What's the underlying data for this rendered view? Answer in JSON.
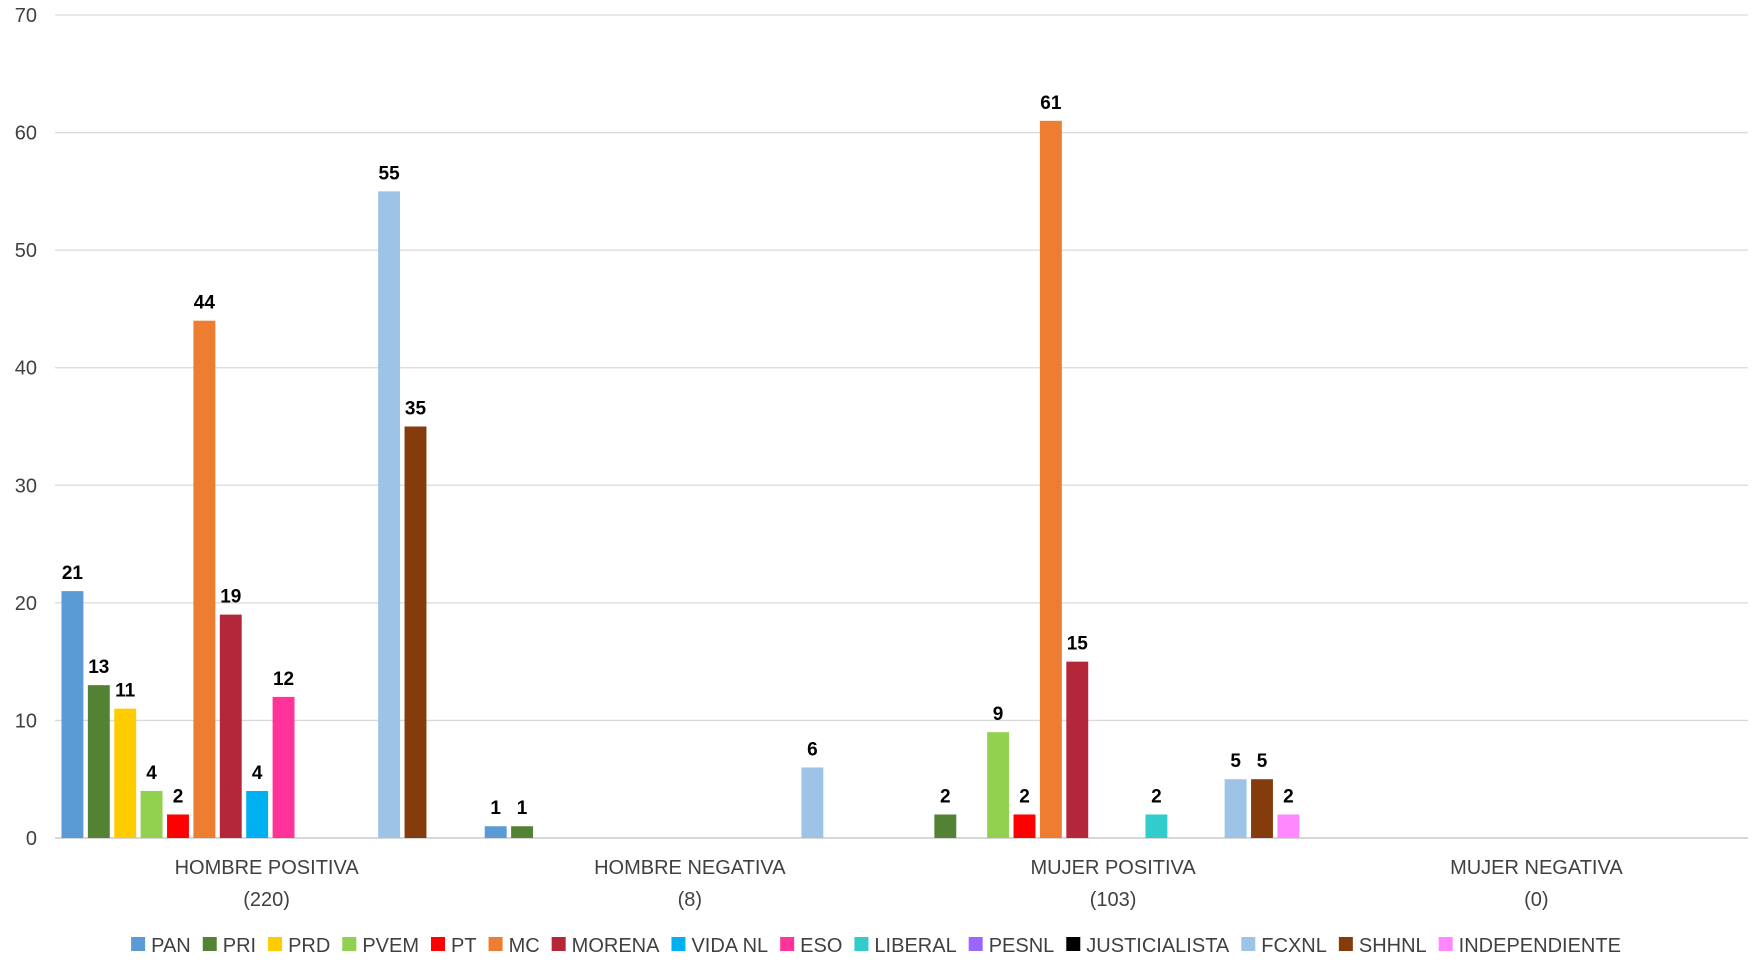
{
  "chart_data": {
    "type": "bar",
    "title": "",
    "xlabel": "",
    "ylabel": "",
    "ylim": [
      0,
      70
    ],
    "yticks": [
      0,
      10,
      20,
      30,
      40,
      50,
      60,
      70
    ],
    "grid": true,
    "legend_position": "bottom",
    "categories": [
      {
        "name": "HOMBRE POSITIVA",
        "sub": "(220)"
      },
      {
        "name": "HOMBRE NEGATIVA",
        "sub": "(8)"
      },
      {
        "name": "MUJER POSITIVA",
        "sub": "(103)"
      },
      {
        "name": "MUJER NEGATIVA",
        "sub": "(0)"
      }
    ],
    "series": [
      {
        "name": "PAN",
        "color": "#5B9BD5",
        "values": [
          21,
          1,
          0,
          0
        ]
      },
      {
        "name": "PRI",
        "color": "#548235",
        "values": [
          13,
          1,
          2,
          0
        ]
      },
      {
        "name": "PRD",
        "color": "#FFCC00",
        "values": [
          11,
          0,
          0,
          0
        ]
      },
      {
        "name": "PVEM",
        "color": "#92D050",
        "values": [
          4,
          0,
          9,
          0
        ]
      },
      {
        "name": "PT",
        "color": "#FF0000",
        "values": [
          2,
          0,
          2,
          0
        ]
      },
      {
        "name": "MC",
        "color": "#ED7D31",
        "values": [
          44,
          0,
          61,
          0
        ]
      },
      {
        "name": "MORENA",
        "color": "#B4273A",
        "values": [
          19,
          0,
          15,
          0
        ]
      },
      {
        "name": "VIDA NL",
        "color": "#00B0F0",
        "values": [
          4,
          0,
          0,
          0
        ]
      },
      {
        "name": "ESO",
        "color": "#FF3399",
        "values": [
          12,
          0,
          0,
          0
        ]
      },
      {
        "name": "LIBERAL",
        "color": "#33CCCC",
        "values": [
          0,
          0,
          2,
          0
        ]
      },
      {
        "name": "PESNL",
        "color": "#9966FF",
        "values": [
          0,
          0,
          0,
          0
        ]
      },
      {
        "name": "JUSTICIALISTA",
        "color": "#000000",
        "values": [
          0,
          0,
          0,
          0
        ]
      },
      {
        "name": "FCXNL",
        "color": "#9DC3E6",
        "values": [
          55,
          6,
          5,
          0
        ]
      },
      {
        "name": "SHHNL",
        "color": "#843C0C",
        "values": [
          35,
          0,
          5,
          0
        ]
      },
      {
        "name": "INDEPENDIENTE",
        "color": "#FF88FF",
        "values": [
          0,
          0,
          2,
          0
        ]
      }
    ]
  }
}
